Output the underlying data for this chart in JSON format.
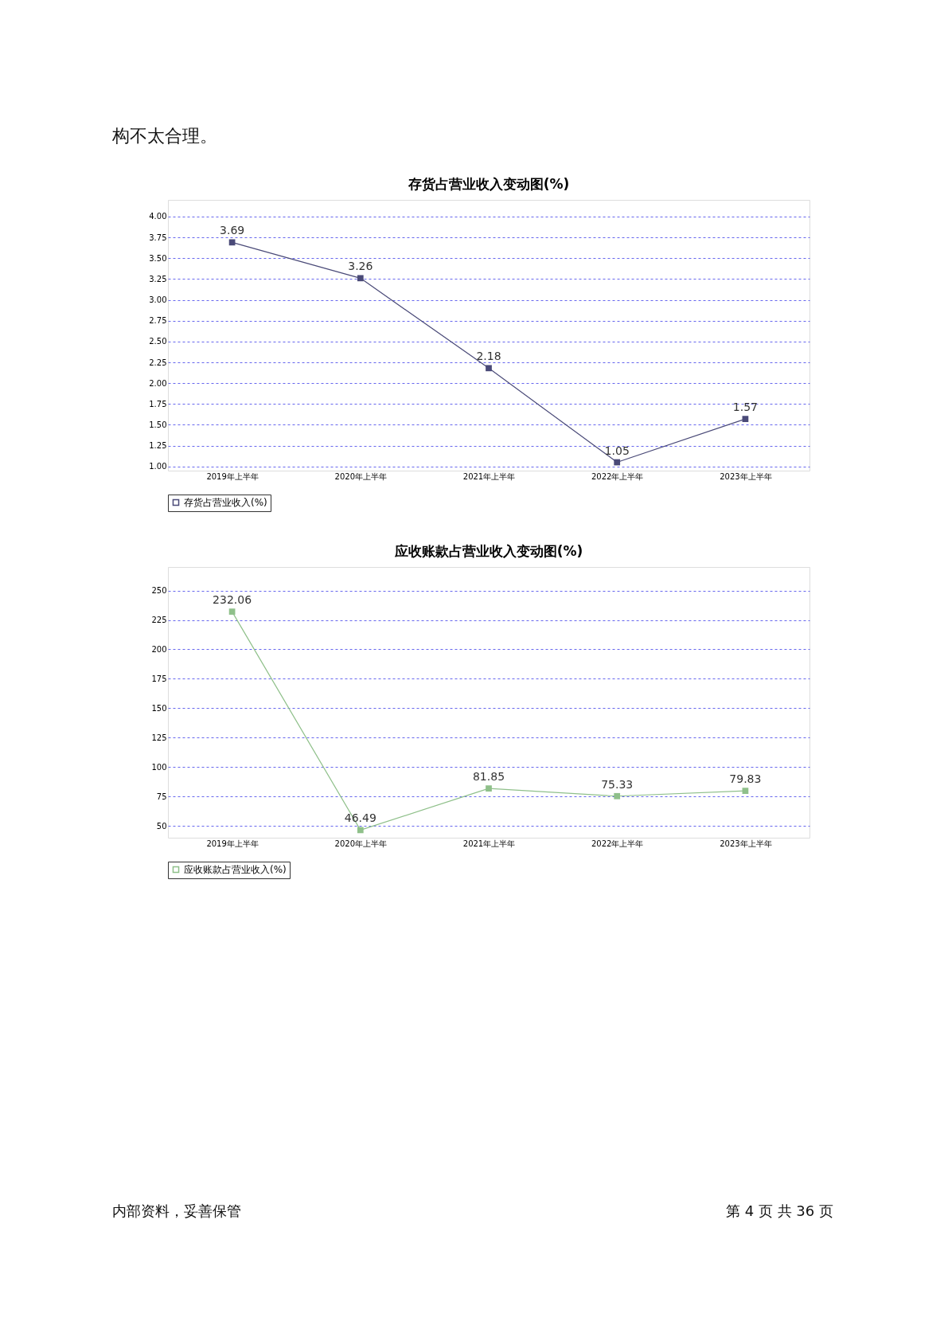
{
  "chart_data": [
    {
      "type": "line",
      "title": "存货占营业收入变动图(%)",
      "categories": [
        "2019年上半年",
        "2020年上半年",
        "2021年上半年",
        "2022年上半年",
        "2023年上半年"
      ],
      "series": [
        {
          "name": "存货占营业收入(%)",
          "color": "#4a4a78",
          "values": [
            3.69,
            3.26,
            2.18,
            1.05,
            1.57
          ]
        }
      ],
      "ylim": [
        0.95,
        4.2
      ],
      "yticks": [
        {
          "value": 1,
          "label": "1.00"
        },
        {
          "value": 1.25,
          "label": "1.25"
        },
        {
          "value": 1.5,
          "label": "1.50"
        },
        {
          "value": 1.75,
          "label": "1.75"
        },
        {
          "value": 2,
          "label": "2.00"
        },
        {
          "value": 2.25,
          "label": "2.25"
        },
        {
          "value": 2.5,
          "label": "2.50"
        },
        {
          "value": 2.75,
          "label": "2.75"
        },
        {
          "value": 3,
          "label": "3.00"
        },
        {
          "value": 3.25,
          "label": "3.25"
        },
        {
          "value": 3.5,
          "label": "3.50"
        },
        {
          "value": 3.75,
          "label": "3.75"
        },
        {
          "value": 4,
          "label": "4.00"
        }
      ],
      "grid": "y",
      "legend": "bottom",
      "marker": "square",
      "line_style": "solid",
      "data_labels": true,
      "annotations": [
        "构不太合理。"
      ]
    },
    {
      "type": "line",
      "title": "应收账款占营业收入变动图(%)",
      "categories": [
        "2019年上半年",
        "2020年上半年",
        "2021年上半年",
        "2022年上半年",
        "2023年上半年"
      ],
      "series": [
        {
          "name": "应收账款占营业收入(%)",
          "color": "#8fc08a",
          "values": [
            232.06,
            46.49,
            81.85,
            75.33,
            79.83
          ]
        }
      ],
      "ylim": [
        40,
        270
      ],
      "yticks": [
        50,
        75,
        100,
        125,
        150,
        175,
        200,
        225,
        250
      ],
      "grid": "y",
      "legend": "bottom",
      "marker": "square",
      "line_style": "solid",
      "data_labels": true,
      "annotations": [
        "内部资料，妥善保管",
        "第 4 页   共 36 页"
      ]
    }
  ]
}
